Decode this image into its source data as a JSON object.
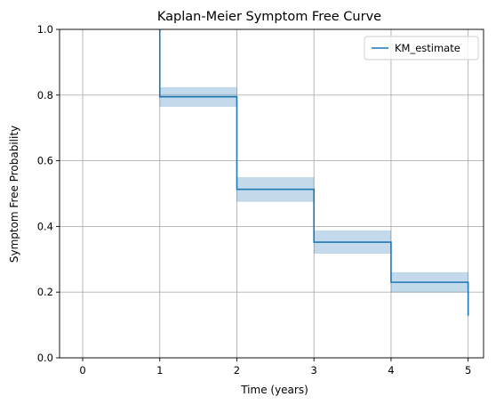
{
  "chart_data": {
    "type": "line",
    "title": "Kaplan-Meier Symptom Free Curve",
    "xlabel": "Time (years)",
    "ylabel": "Symptom Free Probability",
    "xlim": [
      -0.3,
      5.2
    ],
    "ylim": [
      0.0,
      1.0
    ],
    "x_ticks": [
      0,
      1,
      2,
      3,
      4,
      5
    ],
    "y_ticks": [
      0.0,
      0.2,
      0.4,
      0.6,
      0.8,
      1.0
    ],
    "x_tick_labels": [
      "0",
      "1",
      "2",
      "3",
      "4",
      "5"
    ],
    "y_tick_labels": [
      "0.0",
      "0.2",
      "0.4",
      "0.6",
      "0.8",
      "1.0"
    ],
    "grid": true,
    "legend_position": "top-right",
    "series": [
      {
        "name": "KM_estimate",
        "color": "#1f77b4",
        "step": "post",
        "x": [
          1,
          2,
          3,
          4,
          5
        ],
        "y": [
          0.795,
          0.513,
          0.352,
          0.23,
          0.128
        ],
        "start_y": 1.0,
        "ci_lower": [
          0.765,
          0.476,
          0.318,
          0.2
        ],
        "ci_upper": [
          0.823,
          0.549,
          0.387,
          0.26
        ],
        "ci_color": "#1f77b4"
      }
    ]
  }
}
